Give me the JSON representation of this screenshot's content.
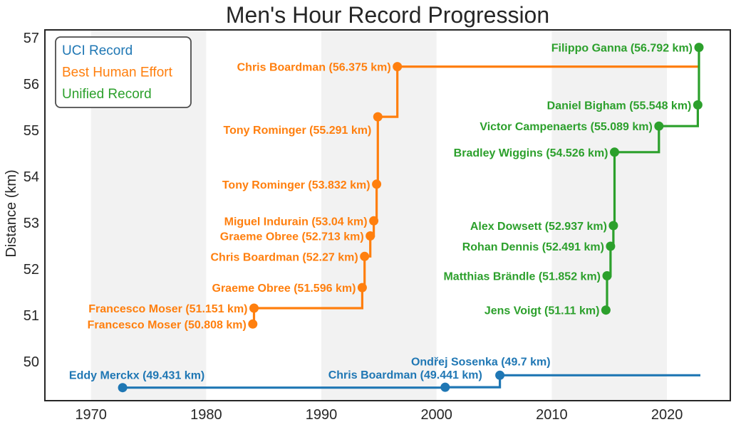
{
  "chart_data": {
    "type": "line",
    "step": "post",
    "title": "Men's Hour Record Progression",
    "xlabel": "",
    "ylabel": "Distance (km)",
    "xlim": [
      1966,
      2025.5
    ],
    "ylim": [
      49.15,
      57.17
    ],
    "x_ticks": [
      1970,
      1980,
      1990,
      2000,
      2010,
      2020
    ],
    "y_ticks": [
      50,
      51,
      52,
      53,
      54,
      55,
      56,
      57
    ],
    "grid": false,
    "background_bands_years": [
      [
        1970,
        1980
      ],
      [
        1990,
        2000
      ],
      [
        2010,
        2020
      ]
    ],
    "band_color": "#f2f2f2",
    "axis_color": "#262626",
    "legend": {
      "position": "upper-left",
      "entries": [
        {
          "label": "UCI Record",
          "color": "#1f77b4"
        },
        {
          "label": "Best Human Effort",
          "color": "#ff7f0e"
        },
        {
          "label": "Unified Record",
          "color": "#2ca02c"
        }
      ]
    },
    "series": [
      {
        "name": "UCI Record",
        "color": "#1f77b4",
        "extend_to_year": 2022.9,
        "points": [
          {
            "rider": "Eddy Merckx",
            "year": 1972.75,
            "km": 49.431,
            "label": "Eddy Merckx (49.431 km)",
            "label_anchor": "middle",
            "label_dx": 20,
            "label_dy": -12
          },
          {
            "rider": "Chris Boardman",
            "year": 2000.75,
            "km": 49.441,
            "label": "Chris Boardman (49.441 km)",
            "label_anchor": "end",
            "label_dx": 52,
            "label_dy": -12
          },
          {
            "rider": "Ondřej Sosenka",
            "year": 2005.5,
            "km": 49.7,
            "label": "Ondřej Sosenka (49.7 km)",
            "label_anchor": "end",
            "label_dx": 71,
            "label_dy": -14
          }
        ]
      },
      {
        "name": "Best Human Effort",
        "color": "#ff7f0e",
        "extend_to_year": 2022.78,
        "points": [
          {
            "rider": "Francesco Moser",
            "year": 1984.05,
            "km": 50.808,
            "label": "Francesco Moser (50.808 km)"
          },
          {
            "rider": "Francesco Moser",
            "year": 1984.15,
            "km": 51.151,
            "label": "Francesco Moser (51.151 km)"
          },
          {
            "rider": "Graeme Obree",
            "year": 1993.55,
            "km": 51.596,
            "label": "Graeme Obree (51.596 km)"
          },
          {
            "rider": "Chris Boardman",
            "year": 1993.75,
            "km": 52.27,
            "label": "Chris Boardman (52.27 km)"
          },
          {
            "rider": "Graeme Obree",
            "year": 1994.25,
            "km": 52.713,
            "label": "Graeme Obree (52.713 km)"
          },
          {
            "rider": "Miguel Indurain",
            "year": 1994.55,
            "km": 53.04,
            "label": "Miguel Indurain (53.04 km)"
          },
          {
            "rider": "Tony Rominger",
            "year": 1994.8,
            "km": 53.832,
            "label": "Tony Rominger (53.832 km)"
          },
          {
            "rider": "Tony Rominger",
            "year": 1994.9,
            "km": 55.291,
            "label": "Tony Rominger (55.291 km)",
            "label_dy": 24
          },
          {
            "rider": "Chris Boardman",
            "year": 1996.6,
            "km": 56.375,
            "label": "Chris Boardman (56.375 km)"
          }
        ]
      },
      {
        "name": "Unified Record",
        "color": "#2ca02c",
        "extend_to_year": null,
        "points": [
          {
            "rider": "Jens Voigt",
            "year": 2014.7,
            "km": 51.11,
            "label": "Jens Voigt (51.11 km)"
          },
          {
            "rider": "Matthias Brändle",
            "year": 2014.8,
            "km": 51.852,
            "label": "Matthias Brändle (51.852 km)"
          },
          {
            "rider": "Rohan Dennis",
            "year": 2015.1,
            "km": 52.491,
            "label": "Rohan Dennis (52.491 km)"
          },
          {
            "rider": "Alex Dowsett",
            "year": 2015.35,
            "km": 52.937,
            "label": "Alex Dowsett (52.937 km)"
          },
          {
            "rider": "Bradley Wiggins",
            "year": 2015.45,
            "km": 54.526,
            "label": "Bradley Wiggins (54.526 km)"
          },
          {
            "rider": "Victor Campenaerts",
            "year": 2019.3,
            "km": 55.089,
            "label": "Victor Campenaerts (55.089 km)"
          },
          {
            "rider": "Daniel Bigham",
            "year": 2022.68,
            "km": 55.548,
            "label": "Daniel Bigham (55.548 km)"
          },
          {
            "rider": "Filippo Ganna",
            "year": 2022.78,
            "km": 56.792,
            "label": "Filippo Ganna (56.792 km)"
          }
        ]
      }
    ]
  }
}
